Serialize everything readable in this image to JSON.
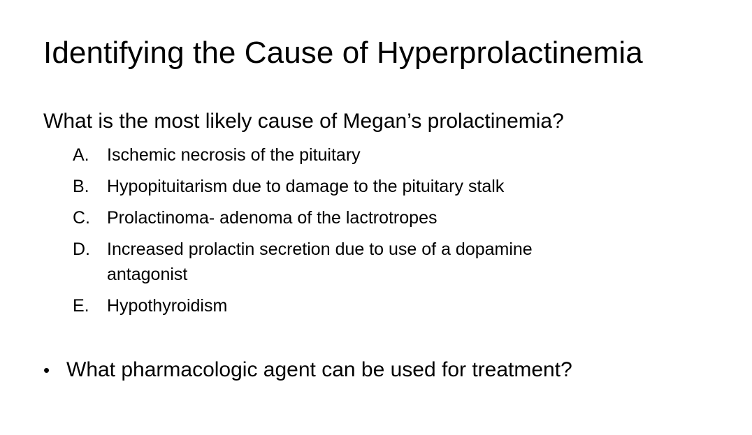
{
  "slide": {
    "title": "Identifying the Cause of Hyperprolactinemia",
    "question": "What is the most likely cause of Megan’s prolactinemia?",
    "options": [
      {
        "letter": "A.",
        "text": "Ischemic necrosis of the pituitary"
      },
      {
        "letter": "B.",
        "text": "Hypopituitarism due to damage to the pituitary stalk"
      },
      {
        "letter": "C.",
        "text": "Prolactinoma- adenoma of the lactrotropes"
      },
      {
        "letter": "D.",
        "text": "Increased prolactin secretion due to use of a dopamine antagonist"
      },
      {
        "letter": "E.",
        "text": "Hypothyroidism"
      }
    ],
    "bullet": {
      "symbol": "•",
      "text": "What pharmacologic agent can be used for treatment?"
    }
  }
}
